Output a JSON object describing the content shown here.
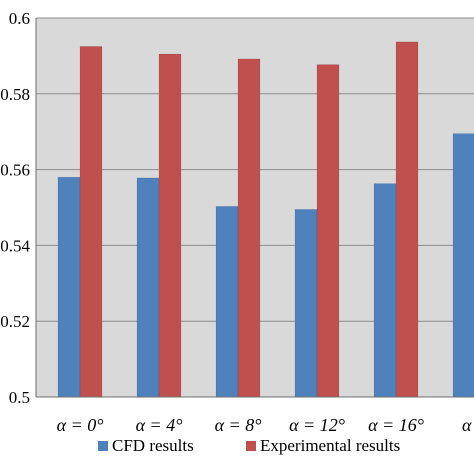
{
  "chart_data": {
    "type": "bar",
    "categories": [
      "α = 0°",
      "α = 4°",
      "α = 8°",
      "α = 12°",
      "α = 16°",
      "α ="
    ],
    "series": [
      {
        "name": "CFD results",
        "color": "#4f81bd",
        "values": [
          0.558,
          0.5578,
          0.5503,
          0.5495,
          0.5563,
          0.5695
        ]
      },
      {
        "name": "Experimental results",
        "color": "#c0504d",
        "values": [
          0.5925,
          0.5905,
          0.5892,
          0.5877,
          0.5937,
          null
        ]
      }
    ],
    "y_ticks": [
      {
        "value": 0.5,
        "label": "0.5"
      },
      {
        "value": 0.52,
        "label": "0.52"
      },
      {
        "value": 0.54,
        "label": "0.54"
      },
      {
        "value": 0.56,
        "label": "0.56"
      },
      {
        "value": 0.58,
        "label": "0.58"
      },
      {
        "value": 0.6,
        "label": "0.6"
      }
    ],
    "ylim": [
      0.5,
      0.6
    ],
    "grid": true,
    "legend_position": "bottom",
    "plot_background": "#d9d9d9"
  }
}
